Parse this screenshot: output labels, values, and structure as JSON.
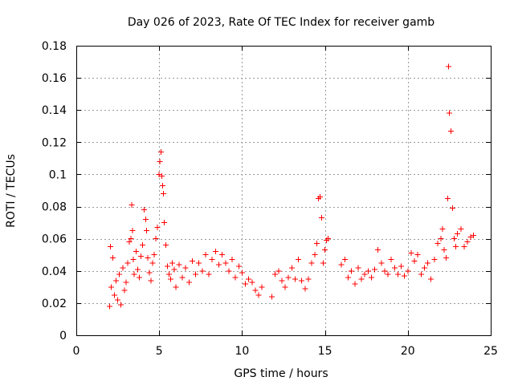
{
  "chart_data": {
    "type": "scatter",
    "title": "Day 026 of 2023, Rate Of TEC Index for receiver gamb",
    "xlabel": "GPS time / hours",
    "ylabel": "ROTI / TECUs",
    "xlim": [
      0,
      25
    ],
    "ylim": [
      0,
      0.18
    ],
    "x_ticks": [
      0,
      5,
      10,
      15,
      20,
      25
    ],
    "x_tick_labels": [
      "0",
      "5",
      "10",
      "15",
      "20",
      "25"
    ],
    "y_ticks": [
      0,
      0.02,
      0.04,
      0.06,
      0.08,
      0.1,
      0.12,
      0.14,
      0.16,
      0.18
    ],
    "y_tick_labels": [
      "0",
      "0.02",
      "0.04",
      "0.06",
      "0.08",
      "0.1",
      "0.12",
      "0.14",
      "0.16",
      "0.18"
    ],
    "grid": true,
    "marker": "+",
    "color": "#ff0000",
    "series": [
      {
        "name": "ROTI",
        "x": [
          2.0,
          2.05,
          2.1,
          2.2,
          2.3,
          2.4,
          2.5,
          2.6,
          2.7,
          2.8,
          2.9,
          3.0,
          3.1,
          3.2,
          3.3,
          3.35,
          3.4,
          3.45,
          3.5,
          3.6,
          3.7,
          3.8,
          3.9,
          4.0,
          4.1,
          4.2,
          4.25,
          4.3,
          4.4,
          4.5,
          4.6,
          4.7,
          4.8,
          4.9,
          5.0,
          5.05,
          5.1,
          5.15,
          5.2,
          5.25,
          5.3,
          5.4,
          5.5,
          5.6,
          5.7,
          5.8,
          5.9,
          6.0,
          6.2,
          6.4,
          6.6,
          6.8,
          7.0,
          7.2,
          7.4,
          7.6,
          7.8,
          8.0,
          8.2,
          8.4,
          8.6,
          8.8,
          9.0,
          9.2,
          9.4,
          9.6,
          9.8,
          10.0,
          10.2,
          10.4,
          10.6,
          10.8,
          11.0,
          11.2,
          11.8,
          12.0,
          12.2,
          12.4,
          12.6,
          12.8,
          13.0,
          13.2,
          13.4,
          13.6,
          13.8,
          14.0,
          14.2,
          14.4,
          14.5,
          14.6,
          14.7,
          14.8,
          14.9,
          15.0,
          15.1,
          15.2,
          16.0,
          16.2,
          16.4,
          16.6,
          16.8,
          17.0,
          17.2,
          17.4,
          17.6,
          17.8,
          18.0,
          18.2,
          18.4,
          18.6,
          18.8,
          19.0,
          19.2,
          19.4,
          19.6,
          19.8,
          20.0,
          20.2,
          20.4,
          20.6,
          20.8,
          21.0,
          21.2,
          21.4,
          21.6,
          21.8,
          22.0,
          22.1,
          22.2,
          22.3,
          22.4,
          22.45,
          22.5,
          22.6,
          22.7,
          22.8,
          22.9,
          23.0,
          23.2,
          23.4,
          23.6,
          23.8,
          23.95
        ],
        "y": [
          0.018,
          0.055,
          0.03,
          0.048,
          0.025,
          0.034,
          0.022,
          0.038,
          0.019,
          0.042,
          0.028,
          0.033,
          0.045,
          0.058,
          0.06,
          0.081,
          0.065,
          0.047,
          0.038,
          0.052,
          0.041,
          0.036,
          0.049,
          0.056,
          0.078,
          0.072,
          0.065,
          0.048,
          0.039,
          0.034,
          0.045,
          0.05,
          0.06,
          0.067,
          0.1,
          0.108,
          0.114,
          0.099,
          0.093,
          0.088,
          0.07,
          0.056,
          0.043,
          0.038,
          0.035,
          0.045,
          0.041,
          0.03,
          0.044,
          0.036,
          0.042,
          0.033,
          0.046,
          0.038,
          0.045,
          0.04,
          0.05,
          0.038,
          0.047,
          0.052,
          0.044,
          0.05,
          0.045,
          0.04,
          0.047,
          0.036,
          0.043,
          0.039,
          0.032,
          0.035,
          0.033,
          0.028,
          0.025,
          0.03,
          0.024,
          0.038,
          0.04,
          0.034,
          0.03,
          0.036,
          0.042,
          0.035,
          0.047,
          0.034,
          0.029,
          0.035,
          0.045,
          0.05,
          0.057,
          0.085,
          0.086,
          0.073,
          0.045,
          0.053,
          0.059,
          0.06,
          0.044,
          0.047,
          0.036,
          0.04,
          0.032,
          0.042,
          0.035,
          0.038,
          0.04,
          0.036,
          0.041,
          0.053,
          0.045,
          0.04,
          0.038,
          0.047,
          0.042,
          0.038,
          0.043,
          0.037,
          0.04,
          0.051,
          0.046,
          0.05,
          0.038,
          0.042,
          0.045,
          0.035,
          0.047,
          0.057,
          0.06,
          0.066,
          0.053,
          0.048,
          0.085,
          0.167,
          0.138,
          0.127,
          0.079,
          0.06,
          0.055,
          0.063,
          0.066,
          0.055,
          0.058,
          0.061,
          0.062
        ]
      }
    ]
  }
}
